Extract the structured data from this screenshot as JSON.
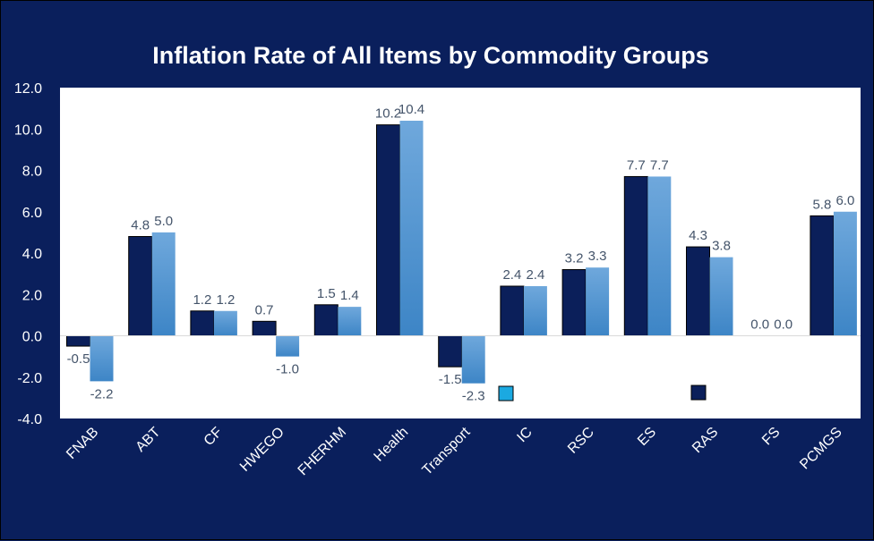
{
  "chart_data": {
    "type": "bar",
    "title": "Inflation Rate of All Items by Commodity Groups",
    "categories": [
      "FNAB",
      "ABT",
      "CF",
      "HWEGO",
      "FHERHM",
      "Health",
      "Transport",
      "IC",
      "RSC",
      "ES",
      "RAS",
      "FS",
      "PCMGS"
    ],
    "series": [
      {
        "values": [
          -0.5,
          4.8,
          1.2,
          0.7,
          1.5,
          10.2,
          -1.5,
          2.4,
          3.2,
          7.7,
          4.3,
          0.0,
          5.8
        ],
        "labels": [
          "-0.5",
          "4.8",
          "1.2",
          "0.7",
          "1.5",
          "10.2",
          "-1.5",
          "2.4",
          "3.2",
          "7.7",
          "4.3",
          "0.0",
          "5.8"
        ]
      },
      {
        "values": [
          -2.2,
          5.0,
          1.2,
          -1.0,
          1.4,
          10.4,
          -2.3,
          2.4,
          3.3,
          7.7,
          3.8,
          0.0,
          6.0
        ],
        "labels": [
          "-2.2",
          "5.0",
          "1.2",
          "-1.0",
          "1.4",
          "10.4",
          "-2.3",
          "2.4",
          "3.3",
          "7.7",
          "3.8",
          "0.0",
          "6.0"
        ]
      }
    ],
    "ylim": [
      -4.0,
      12.0
    ],
    "yticks": [
      "12.0",
      "10.0",
      "8.0",
      "6.0",
      "4.0",
      "2.0",
      "0.0",
      "-2.0",
      "-4.0"
    ],
    "grid": false,
    "legend": "bottom-center",
    "colors": {
      "background": "#0a1f5c",
      "plot_area": "#ffffff",
      "series_1": "#0b1f5a",
      "series_2_top": "#6fa8dc",
      "series_2_bottom": "#3d85c6",
      "legend_marker_1": "#1ba9e1",
      "legend_marker_2": "#0b1f5a"
    }
  }
}
